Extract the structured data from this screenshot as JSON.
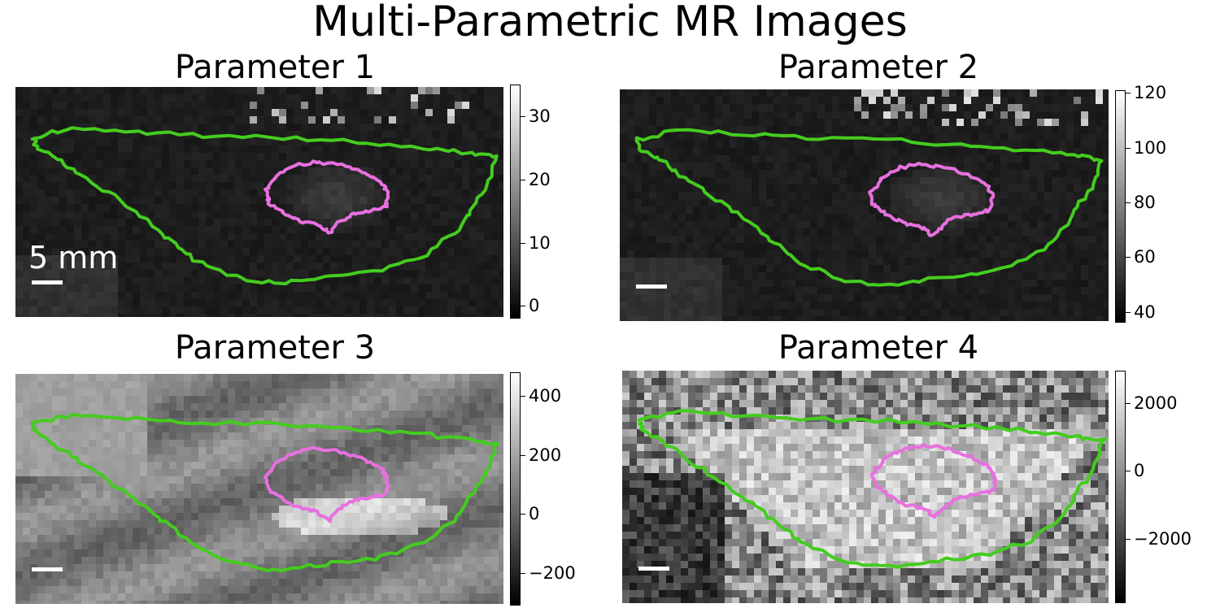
{
  "figure": {
    "title": "Multi-Parametric MR Images",
    "colors": {
      "outer_contour": "#44cc1f",
      "inner_contour": "#e870e0",
      "scale_bar": "#ffffff"
    },
    "scale_bar_label": "5 mm",
    "panels": [
      {
        "id": "p1",
        "title": "Parameter 1",
        "colorbar_min": -2,
        "colorbar_max": 35,
        "ticks": [
          "30",
          "20",
          "10",
          "0"
        ],
        "tick_values": [
          30,
          20,
          10,
          0
        ]
      },
      {
        "id": "p2",
        "title": "Parameter 2",
        "colorbar_min": 36,
        "colorbar_max": 121,
        "ticks": [
          "120",
          "100",
          "80",
          "60",
          "40"
        ],
        "tick_values": [
          120,
          100,
          80,
          60,
          40
        ]
      },
      {
        "id": "p3",
        "title": "Parameter 3",
        "colorbar_min": -310,
        "colorbar_max": 480,
        "ticks": [
          "400",
          "200",
          "0",
          "−200"
        ],
        "tick_values": [
          400,
          200,
          0,
          -200
        ]
      },
      {
        "id": "p4",
        "title": "Parameter 4",
        "colorbar_min": -3900,
        "colorbar_max": 2950,
        "ticks": [
          "2000",
          "0",
          "−2000"
        ],
        "tick_values": [
          2000,
          0,
          -2000
        ]
      }
    ]
  }
}
